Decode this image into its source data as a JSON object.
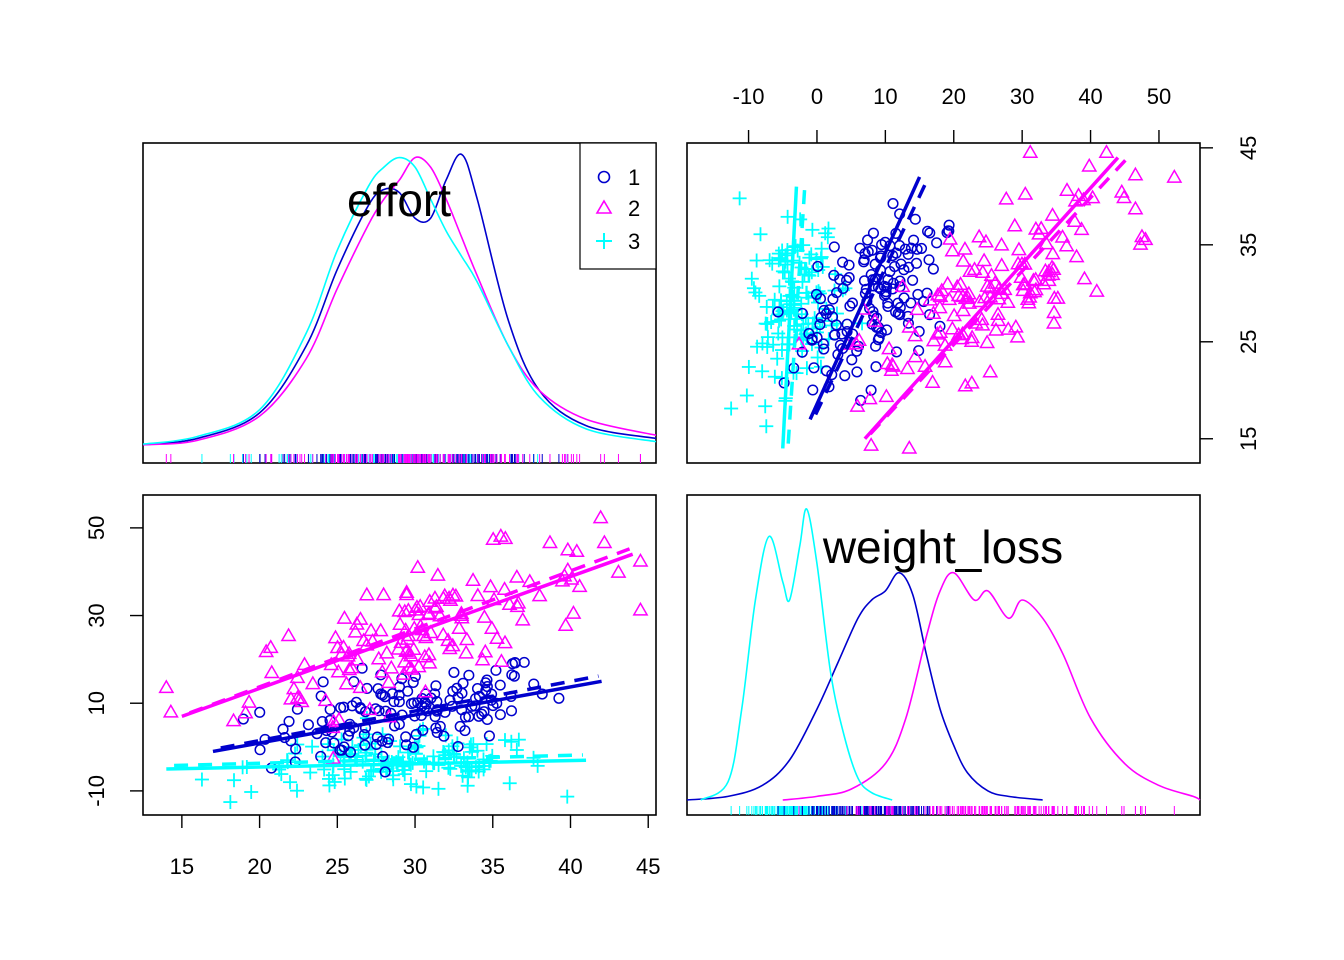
{
  "chart_data": {
    "type": "scatter",
    "variables": [
      "effort",
      "weight_loss"
    ],
    "groups": [
      {
        "name": "1",
        "color": "#0000CD",
        "marker": "circle"
      },
      {
        "name": "2",
        "color": "#FF00FF",
        "marker": "triangle"
      },
      {
        "name": "3",
        "color": "#00FFFF",
        "marker": "plus"
      }
    ],
    "legend": {
      "placement": "top-right",
      "panel": "effort-density",
      "entries": [
        "1",
        "2",
        "3"
      ]
    },
    "axes": {
      "effort": {
        "range": [
          12.5,
          45.5
        ],
        "ticks": [
          "15",
          "20",
          "25",
          "30",
          "35",
          "40",
          "45"
        ]
      },
      "weight_loss_bottom": {
        "range": [
          -15.5,
          57.5
        ],
        "ticks": [
          "-10",
          "10",
          "30",
          "50"
        ]
      },
      "weight_loss_top": {
        "range": [
          -19,
          56
        ],
        "ticks": [
          "-10",
          "0",
          "10",
          "20",
          "30",
          "40",
          "50"
        ]
      },
      "effort_right": {
        "range": [
          12.5,
          45.5
        ],
        "ticks": [
          "15",
          "25",
          "35",
          "45"
        ]
      }
    },
    "panels": [
      {
        "id": "effort-density",
        "title": "effort",
        "kind": "density",
        "x_axis": "effort"
      },
      {
        "id": "scatter-top-right",
        "kind": "scatter",
        "x_var": "weight_loss",
        "y_var": "effort"
      },
      {
        "id": "scatter-bottom-left",
        "kind": "scatter",
        "x_var": "effort",
        "y_var": "weight_loss"
      },
      {
        "id": "weight-loss-density",
        "title": "weight_loss",
        "kind": "density",
        "x_axis": "weight_loss"
      }
    ],
    "density_effort": {
      "x": [
        12.5,
        16,
        20,
        23,
        25,
        27,
        28,
        29,
        30,
        31,
        32,
        33,
        34,
        36,
        38,
        41,
        45.5
      ],
      "series": [
        {
          "name": "1",
          "values": [
            0.005,
            0.015,
            0.055,
            0.16,
            0.28,
            0.38,
            0.405,
            0.4,
            0.36,
            0.36,
            0.42,
            0.46,
            0.39,
            0.2,
            0.09,
            0.035,
            0.015
          ]
        },
        {
          "name": "2",
          "values": [
            0.005,
            0.012,
            0.05,
            0.14,
            0.25,
            0.35,
            0.39,
            0.42,
            0.455,
            0.44,
            0.39,
            0.33,
            0.27,
            0.16,
            0.09,
            0.045,
            0.02
          ]
        },
        {
          "name": "3",
          "values": [
            0.006,
            0.018,
            0.06,
            0.18,
            0.31,
            0.41,
            0.44,
            0.455,
            0.44,
            0.39,
            0.34,
            0.3,
            0.26,
            0.16,
            0.08,
            0.03,
            0.01
          ]
        }
      ],
      "ymax": 0.47
    },
    "density_weight_loss": {
      "series": [
        {
          "name": "1",
          "x": [
            -19,
            -13,
            -8,
            -4,
            0,
            3,
            6,
            8,
            10,
            12,
            14,
            16,
            18,
            20,
            22,
            25,
            28,
            33
          ],
          "values": [
            0.0,
            0.002,
            0.008,
            0.022,
            0.05,
            0.075,
            0.1,
            0.11,
            0.115,
            0.125,
            0.113,
            0.08,
            0.05,
            0.03,
            0.015,
            0.005,
            0.002,
            0.0
          ]
        },
        {
          "name": "2",
          "x": [
            -5,
            0,
            5,
            10,
            13,
            16,
            18,
            20,
            23,
            25,
            28,
            30,
            33,
            36,
            40,
            45,
            50,
            55,
            56
          ],
          "values": [
            0.0,
            0.002,
            0.006,
            0.02,
            0.045,
            0.09,
            0.115,
            0.125,
            0.11,
            0.115,
            0.1,
            0.11,
            0.1,
            0.08,
            0.045,
            0.02,
            0.008,
            0.002,
            0.0
          ]
        },
        {
          "name": "3",
          "x": [
            -17,
            -13,
            -11,
            -9,
            -7,
            -5,
            -4,
            -2.5,
            -1.5,
            0,
            2,
            4,
            6,
            8,
            11
          ],
          "values": [
            0.0,
            0.01,
            0.05,
            0.11,
            0.145,
            0.12,
            0.11,
            0.14,
            0.16,
            0.13,
            0.07,
            0.035,
            0.012,
            0.004,
            0.0
          ]
        }
      ],
      "ymax": 0.165
    },
    "fit_lines": [
      {
        "name": "1",
        "effort": [
          17,
          42
        ],
        "weight_loss": [
          -1,
          15
        ]
      },
      {
        "name": "2",
        "effort": [
          15,
          44
        ],
        "weight_loss": [
          7,
          44
        ]
      },
      {
        "name": "3",
        "effort": [
          14,
          41
        ],
        "weight_loss": [
          -5,
          -3
        ]
      }
    ]
  }
}
